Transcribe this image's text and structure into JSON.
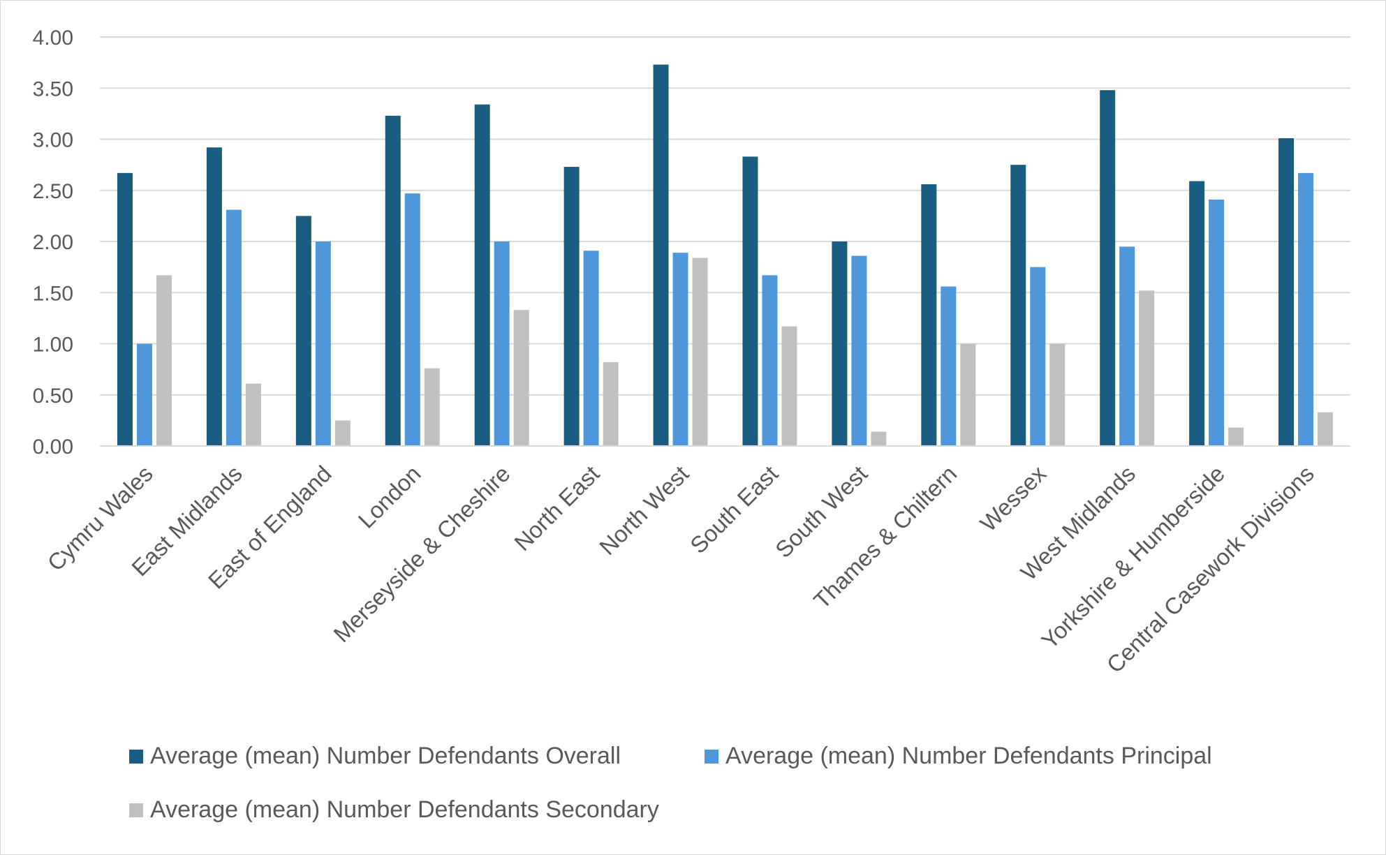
{
  "chart_data": {
    "type": "bar",
    "title": "",
    "xlabel": "",
    "ylabel": "",
    "ylim": [
      0,
      4
    ],
    "yticks": [
      "0.00",
      "0.50",
      "1.00",
      "1.50",
      "2.00",
      "2.50",
      "3.00",
      "3.50",
      "4.00"
    ],
    "grid": "horizontal",
    "legend_position": "bottom",
    "categories": [
      "Cymru Wales",
      "East Midlands",
      "East of England",
      "London",
      "Merseyside & Cheshire",
      "North East",
      "North West",
      "South East",
      "South West",
      "Thames & Chiltern",
      "Wessex",
      "West Midlands",
      "Yorkshire & Humberside",
      "Central Casework Divisions"
    ],
    "series": [
      {
        "name": "Average (mean) Number Defendants Overall",
        "color": "#1a5d82",
        "values": [
          2.67,
          2.92,
          2.25,
          3.23,
          3.34,
          2.73,
          3.73,
          2.83,
          2.0,
          2.56,
          2.75,
          3.48,
          2.59,
          3.01
        ]
      },
      {
        "name": "Average (mean) Number Defendants Principal",
        "color": "#4e97da",
        "values": [
          1.0,
          2.31,
          2.0,
          2.47,
          2.0,
          1.91,
          1.89,
          1.67,
          1.86,
          1.56,
          1.75,
          1.95,
          2.41,
          2.67
        ]
      },
      {
        "name": "Average (mean) Number Defendants Secondary",
        "color": "#c0c0c0",
        "values": [
          1.67,
          0.61,
          0.25,
          0.76,
          1.33,
          0.82,
          1.84,
          1.17,
          0.14,
          1.0,
          1.0,
          1.52,
          0.18,
          0.33
        ]
      }
    ]
  }
}
